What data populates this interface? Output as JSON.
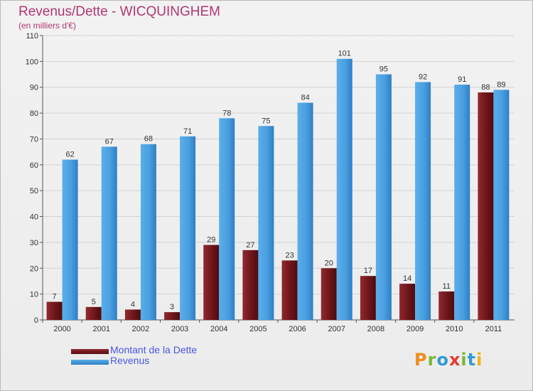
{
  "header": {
    "title": "Revenus/Dette - WICQUINGHEM",
    "subtitle": "(en milliers d'€)"
  },
  "legend": {
    "items": [
      {
        "label": "Montant de la Dette",
        "color": "#7a1a1f"
      },
      {
        "label": "Revenus",
        "color": "#4a9fe0"
      }
    ]
  },
  "logo": {
    "text": "Proxiti"
  },
  "chart_data": {
    "type": "bar",
    "title": "Revenus/Dette - WICQUINGHEM",
    "ylabel": "(en milliers d'€)",
    "xlabel": "",
    "ylim": [
      0,
      110
    ],
    "yticks": [
      0,
      10,
      20,
      30,
      40,
      50,
      60,
      70,
      80,
      90,
      100,
      110
    ],
    "grid": true,
    "legend_position": "bottom-left",
    "categories": [
      "2000",
      "2001",
      "2002",
      "2003",
      "2004",
      "2005",
      "2006",
      "2007",
      "2008",
      "2009",
      "2010",
      "2011"
    ],
    "series": [
      {
        "name": "Montant de la Dette",
        "color": "#7a1a1f",
        "values": [
          7,
          5,
          4,
          3,
          29,
          27,
          23,
          20,
          17,
          14,
          11,
          88
        ]
      },
      {
        "name": "Revenus",
        "color": "#4a9fe0",
        "values": [
          62,
          67,
          68,
          71,
          78,
          75,
          84,
          101,
          95,
          92,
          91,
          89
        ]
      }
    ]
  }
}
